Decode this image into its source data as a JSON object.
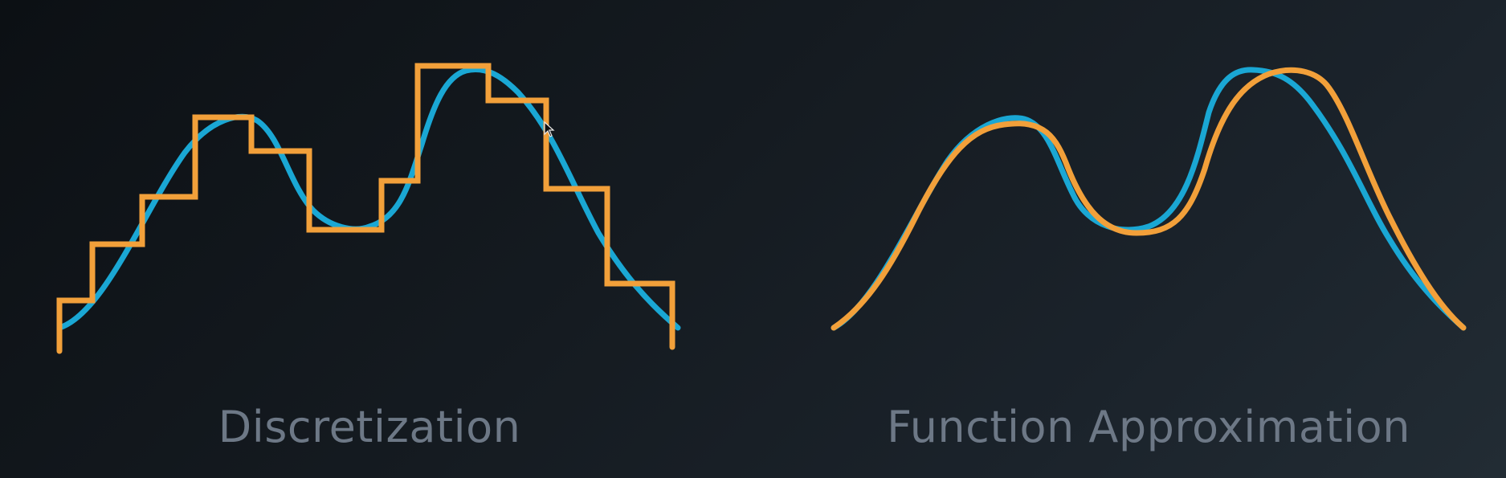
{
  "panels": [
    {
      "caption": "Discretization",
      "true_curve_color": "#1aa7d4",
      "approx_curve_color": "#f2a03a",
      "approx_style": "staircase"
    },
    {
      "caption": "Function Approximation",
      "true_curve_color": "#1aa7d4",
      "approx_curve_color": "#f2a03a",
      "approx_style": "smooth"
    }
  ],
  "cursor": {
    "icon": "mouse-pointer-icon"
  }
}
